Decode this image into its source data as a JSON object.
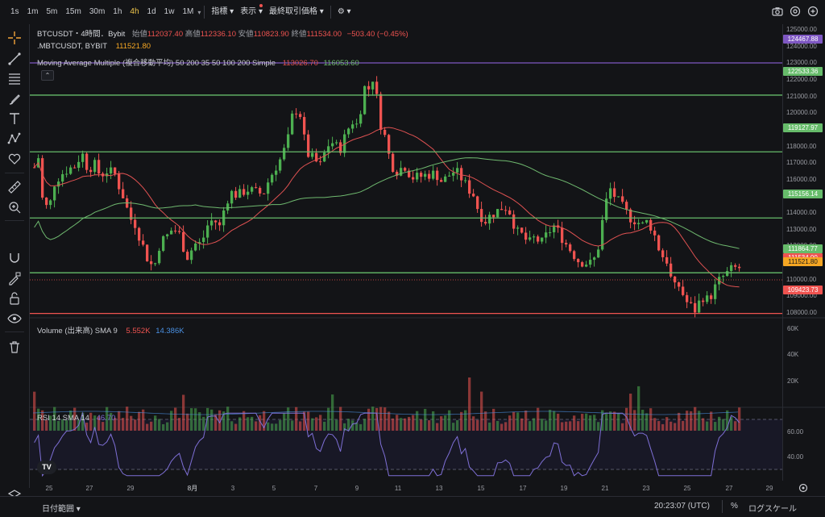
{
  "toolbar": {
    "timeframes": [
      "1s",
      "1m",
      "5m",
      "15m",
      "30m",
      "1h",
      "4h",
      "1d",
      "1w",
      "1M"
    ],
    "active_timeframe": "4h",
    "indicators_label": "指標",
    "display_label": "表示",
    "last_price_label": "最終取引価格"
  },
  "legend": {
    "symbol": "BTCUSDT・4時間．Bybit",
    "open_label": "始値",
    "open": "112037.40",
    "high_label": "高値",
    "high": "112336.10",
    "low_label": "安値",
    "low": "110823.90",
    "close_label": "終値",
    "close": "111534.00",
    "change": "−503.40 (−0.45%)",
    "compare_symbol": ".MBTCUSDT, BYBIT",
    "compare_value": "111521.80",
    "ma_label": "Moving Average Multiple (複合移動平均) 50 200 35 50 100 200 Simple",
    "ma_value1": "113026.70",
    "ma_value2": "116053.60",
    "volume_label": "Volume (出来高) SMA 9",
    "volume_value1": "5.552K",
    "volume_value2": "14.386K",
    "rsi_label": "RSI 14 SMA 14",
    "rsi_value": "46.70"
  },
  "price_axis": {
    "ticks": [
      "125000.00",
      "124000.00",
      "123000.00",
      "122000.00",
      "121000.00",
      "120000.00",
      "119000.00",
      "118000.00",
      "117000.00",
      "116000.00",
      "115000.00",
      "114000.00",
      "113000.00",
      "112000.00",
      "111000.00",
      "110000.00",
      "109000.00",
      "108000.00"
    ],
    "labels": [
      {
        "text": "124467.88",
        "price": 124467.88,
        "color": "#7e57c2"
      },
      {
        "text": "122533.36",
        "price": 122533.36,
        "color": "#66bb6a"
      },
      {
        "text": "119127.97",
        "price": 119127.97,
        "color": "#66bb6a"
      },
      {
        "text": "115156.14",
        "price": 115156.14,
        "color": "#66bb6a"
      },
      {
        "text": "111864.77",
        "price": 111864.77,
        "color": "#66bb6a"
      },
      {
        "text": "111534.00",
        "price": 111534.0,
        "color": "#ef5350"
      },
      {
        "text": "111521.80",
        "price": 111521.8,
        "color": "#f5a623"
      },
      {
        "text": "109423.73",
        "price": 109423.73,
        "color": "#ef5350"
      }
    ],
    "volume_ticks": [
      "60K",
      "40K",
      "20K"
    ],
    "rsi_ticks": [
      "60.00",
      "40.00"
    ]
  },
  "x_axis": {
    "labels": [
      "25",
      "27",
      "29",
      "8月",
      "3",
      "5",
      "7",
      "9",
      "11",
      "13",
      "15",
      "17",
      "19",
      "21",
      "23",
      "25",
      "27",
      "29"
    ]
  },
  "bottom": {
    "range_label": "日付範囲",
    "time": "20:23:07 (UTC)",
    "percent_label": "%",
    "log_label": "ログスケール"
  },
  "colors": {
    "up": "#4caf50",
    "down": "#ef5350",
    "ma_fast": "#e05252",
    "ma_slow": "#6fb96f",
    "rsi": "#7e6fd6",
    "purple_line": "#7e57c2",
    "green_line": "#66bb6a",
    "red_line": "#ef5350"
  },
  "icons": [
    "crosshair-icon",
    "trendline-icon",
    "fib-icon",
    "brush-icon",
    "text-icon",
    "pattern-icon",
    "heart-icon",
    "ruler-icon",
    "zoom-in-icon",
    "magnet-icon",
    "lock-draw-icon",
    "lock-icon",
    "eye-icon",
    "trash-icon",
    "layers-icon"
  ]
}
